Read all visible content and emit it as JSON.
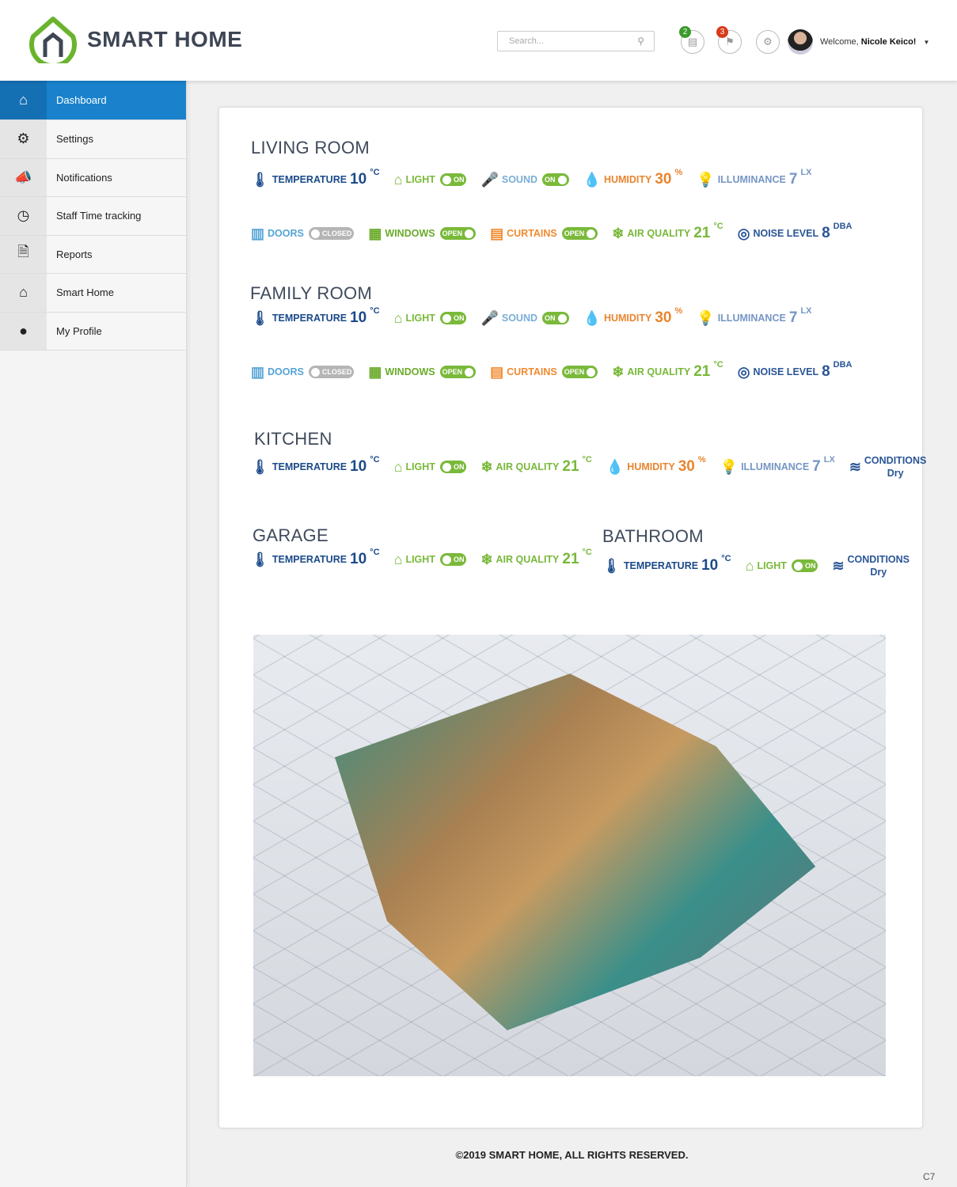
{
  "app": {
    "title": "SMART HOME",
    "brand_color": "#6ab42d"
  },
  "header": {
    "search_placeholder": "Search...",
    "messages_count": "2",
    "flags_count": "3",
    "welcome_prefix": "Welcome, ",
    "user_name": "Nicole Keico!"
  },
  "sidebar": {
    "items": [
      {
        "label": "Dashboard",
        "icon": "home-icon",
        "active": true
      },
      {
        "label": "Settings",
        "icon": "gear-icon"
      },
      {
        "label": "Notifications",
        "icon": "megaphone-icon"
      },
      {
        "label": "Staff Time tracking",
        "icon": "clock-icon"
      },
      {
        "label": "Reports",
        "icon": "document-icon"
      },
      {
        "label": "Smart Home",
        "icon": "house-icon"
      },
      {
        "label": "My Profile",
        "icon": "user-icon"
      }
    ]
  },
  "rooms": {
    "living": {
      "title": "LIVING ROOM"
    },
    "family": {
      "title": "FAMILY ROOM"
    },
    "kitchen": {
      "title": "KITCHEN"
    },
    "garage": {
      "title": "GARAGE"
    },
    "bathroom": {
      "title": "BATHROOM"
    }
  },
  "labels": {
    "temperature": "TEMPERATURE",
    "light": "LIGHT",
    "sound": "SOUND",
    "humidity": "HUMIDITY",
    "illuminance": "ILLUMINANCE",
    "doors": "DOORS",
    "windows": "WINDOWS",
    "curtains": "CURTAINS",
    "air_quality": "AIR QUALITY",
    "noise_level": "NOISE LEVEL",
    "conditions": "CONDITIONS"
  },
  "values": {
    "temperature": "10",
    "temp_unit": "°C",
    "humidity": "30",
    "humidity_unit": "%",
    "illuminance": "7",
    "illuminance_unit": "lx",
    "air_quality": "21",
    "air_unit": "°C",
    "noise": "8",
    "noise_unit": "dba",
    "conditions": "Dry",
    "on": "ON",
    "open": "OPEN",
    "closed": "CLOSED"
  },
  "colors": {
    "temperature": "#1b4a8a",
    "light": "#7ab93a",
    "sound": "#7aaed6",
    "humidity": "#e8852f",
    "illuminance": "#7596c4",
    "doors": "#55a4d6",
    "windows": "#6aab2a",
    "curtains": "#f08a30",
    "air_quality": "#78b83a",
    "noise": "#2a5597",
    "toggle_on": "#7ab93a",
    "toggle_off": "#b5b5b5"
  },
  "footer": {
    "copyright": "©2019 SMART HOME, ALL RIGHTS RESERVED.",
    "page_code": "C7"
  }
}
